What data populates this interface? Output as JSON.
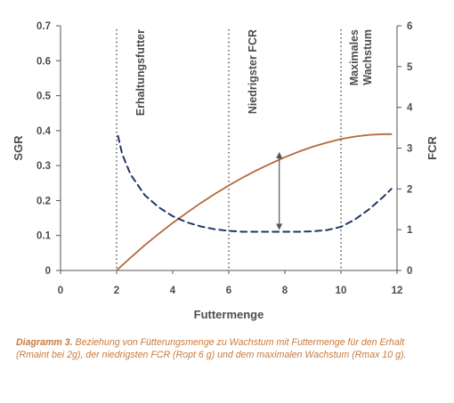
{
  "chart_data": {
    "type": "line",
    "xlabel": "Futtermenge",
    "ylabel_left": "SGR",
    "ylabel_right": "FCR",
    "xlim": [
      0,
      12
    ],
    "ylim_left": [
      0,
      0.7
    ],
    "ylim_right": [
      0,
      6
    ],
    "x_ticks": [
      "0",
      "2",
      "4",
      "6",
      "8",
      "10",
      "12"
    ],
    "y_left_ticks": [
      "0",
      "0.1",
      "0.2",
      "0.3",
      "0.4",
      "0.5",
      "0.6",
      "0.7"
    ],
    "y_right_ticks": [
      "0",
      "1",
      "2",
      "3",
      "4",
      "5",
      "6"
    ],
    "grid": false,
    "series": [
      {
        "axis": "left",
        "style": "solid",
        "color": "#b5673a",
        "x": [
          2.0,
          2.5,
          3,
          3.5,
          4,
          4.5,
          5,
          5.5,
          6,
          6.5,
          7,
          7.5,
          8,
          8.5,
          9,
          9.5,
          10,
          10.5,
          11,
          11.5,
          11.8
        ],
        "y": [
          0.0,
          0.037,
          0.072,
          0.105,
          0.136,
          0.165,
          0.193,
          0.219,
          0.243,
          0.266,
          0.287,
          0.306,
          0.324,
          0.34,
          0.354,
          0.366,
          0.376,
          0.383,
          0.388,
          0.39,
          0.39
        ]
      },
      {
        "axis": "right",
        "style": "dashed",
        "color": "#1f3864",
        "x": [
          2.05,
          2.2,
          2.5,
          3,
          3.5,
          4,
          4.5,
          5,
          5.5,
          6,
          6.5,
          7,
          7.5,
          8,
          8.5,
          9,
          9.5,
          10,
          10.5,
          11,
          11.5,
          11.8
        ],
        "y": [
          3.3,
          2.85,
          2.35,
          1.85,
          1.55,
          1.33,
          1.18,
          1.08,
          1.01,
          0.97,
          0.95,
          0.95,
          0.95,
          0.95,
          0.95,
          0.96,
          0.99,
          1.07,
          1.25,
          1.5,
          1.8,
          2.0
        ]
      }
    ],
    "vlines": [
      {
        "x": 2,
        "label": "Erhaltungsfutter"
      },
      {
        "x": 6,
        "label": "Niedrigster FCR"
      },
      {
        "x": 10,
        "label1": "Maximales",
        "label2": "Wachstum"
      }
    ],
    "arrow": {
      "x": 7.8,
      "y_top": 0.33,
      "y_bottom": 0.125
    }
  },
  "caption": {
    "bold": "Diagramm 3.",
    "text": " Beziehung von Fütterungsmenge zu Wachstum mit Futtermenge für den Erhalt  (Rmaint bei 2g), der niedrigsten FCR (Ropt 6 g) und dem maximalen Wachstum (Rmax 10 g)."
  },
  "colors": {
    "sgr_curve": "#b5673a",
    "fcr_curve": "#1f3864",
    "axis": "#555555",
    "caption": "#c87a3c"
  }
}
